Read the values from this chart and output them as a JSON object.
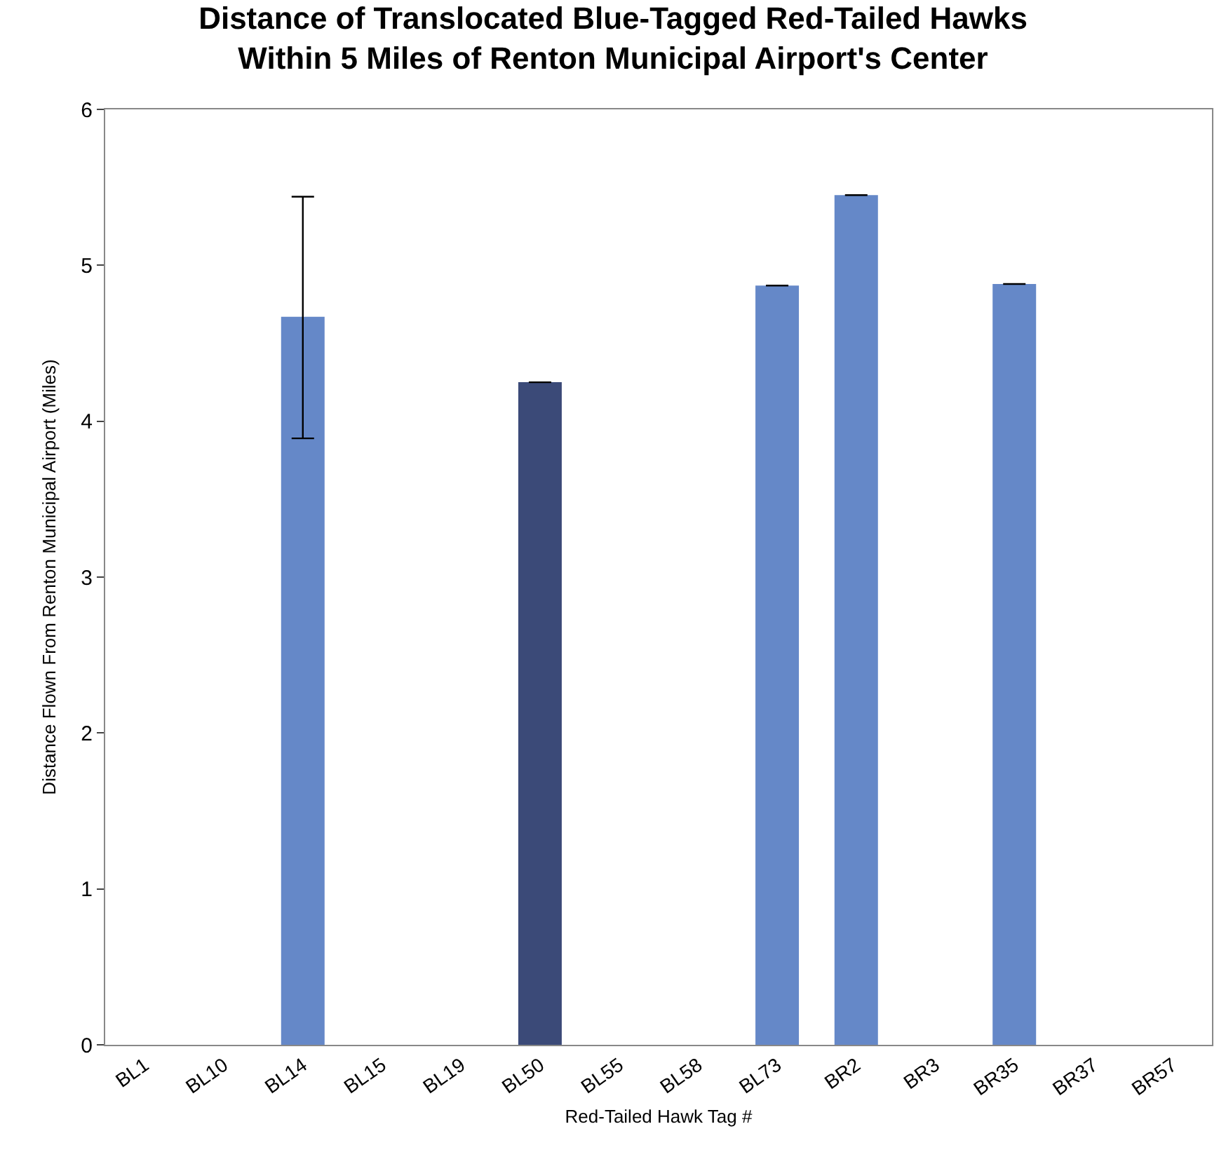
{
  "chart_data": {
    "type": "bar",
    "title": "Distance of Translocated Blue-Tagged Red-Tailed Hawks\nWithin 5 Miles of Renton Municipal Airport's Center",
    "xlabel": "Red-Tailed Hawk Tag #",
    "ylabel": "Distance Flown From Renton Municipal Airport (Miles)",
    "categories": [
      "BL1",
      "BL10",
      "BL14",
      "BL15",
      "BL19",
      "BL50",
      "BL55",
      "BL58",
      "BL73",
      "BR2",
      "BR3",
      "BR35",
      "BR37",
      "BR57"
    ],
    "values": [
      null,
      null,
      4.67,
      null,
      null,
      4.25,
      null,
      null,
      4.87,
      5.45,
      null,
      4.88,
      null,
      null
    ],
    "colors": [
      "#6588c8",
      "#6588c8",
      "#6588c8",
      "#6588c8",
      "#6588c8",
      "#3b4a78",
      "#6588c8",
      "#6588c8",
      "#6588c8",
      "#6588c8",
      "#6588c8",
      "#6588c8",
      "#6588c8",
      "#6588c8"
    ],
    "errors": [
      null,
      null,
      [
        3.89,
        5.44
      ],
      null,
      null,
      0,
      null,
      null,
      0,
      0,
      null,
      0,
      null,
      null
    ],
    "ylim": [
      0,
      6
    ],
    "yticks": [
      0,
      1,
      2,
      3,
      4,
      5,
      6
    ]
  }
}
